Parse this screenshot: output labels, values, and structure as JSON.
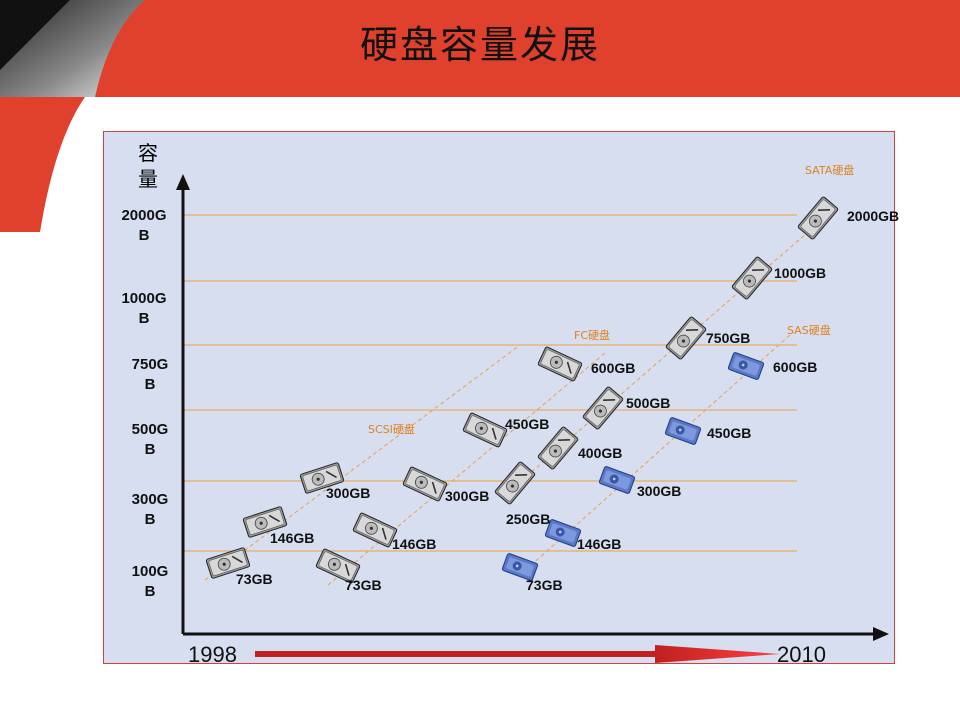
{
  "title": "硬盘容量发展",
  "y_axis_title_line1": "容",
  "y_axis_title_line2": "量",
  "capacity_levels": [
    {
      "line1": "2000G",
      "line2": "B"
    },
    {
      "line1": "1000G",
      "line2": "B"
    },
    {
      "line1": "750G",
      "line2": "B"
    },
    {
      "line1": "500G",
      "line2": "B"
    },
    {
      "line1": "300G",
      "line2": "B"
    },
    {
      "line1": "100G",
      "line2": "B"
    }
  ],
  "years": {
    "start": "1998",
    "end": "2010"
  },
  "series": [
    {
      "name": "SCSI硬盘",
      "items": [
        "73GB",
        "146GB",
        "300GB"
      ]
    },
    {
      "name": "FC硬盘",
      "items": [
        "73GB",
        "146GB",
        "300GB",
        "450GB",
        "600GB"
      ]
    },
    {
      "name": "SATA硬盘",
      "items": [
        "250GB",
        "400GB",
        "500GB",
        "750GB",
        "1000GB",
        "2000GB"
      ]
    },
    {
      "name": "SAS硬盘",
      "items": [
        "73GB",
        "146GB",
        "300GB",
        "450GB",
        "600GB"
      ]
    }
  ],
  "colors": {
    "accent_red": "#e0412d",
    "panel_bg": "#d6deef",
    "grid_line": "#f0a040",
    "dash_line": "#e8a050",
    "sas_blue": "#5a78c8",
    "disk_gray": "#8a8a8a"
  },
  "icons": {
    "disk": "hard-disk-icon",
    "sas": "sas-disk-icon"
  }
}
